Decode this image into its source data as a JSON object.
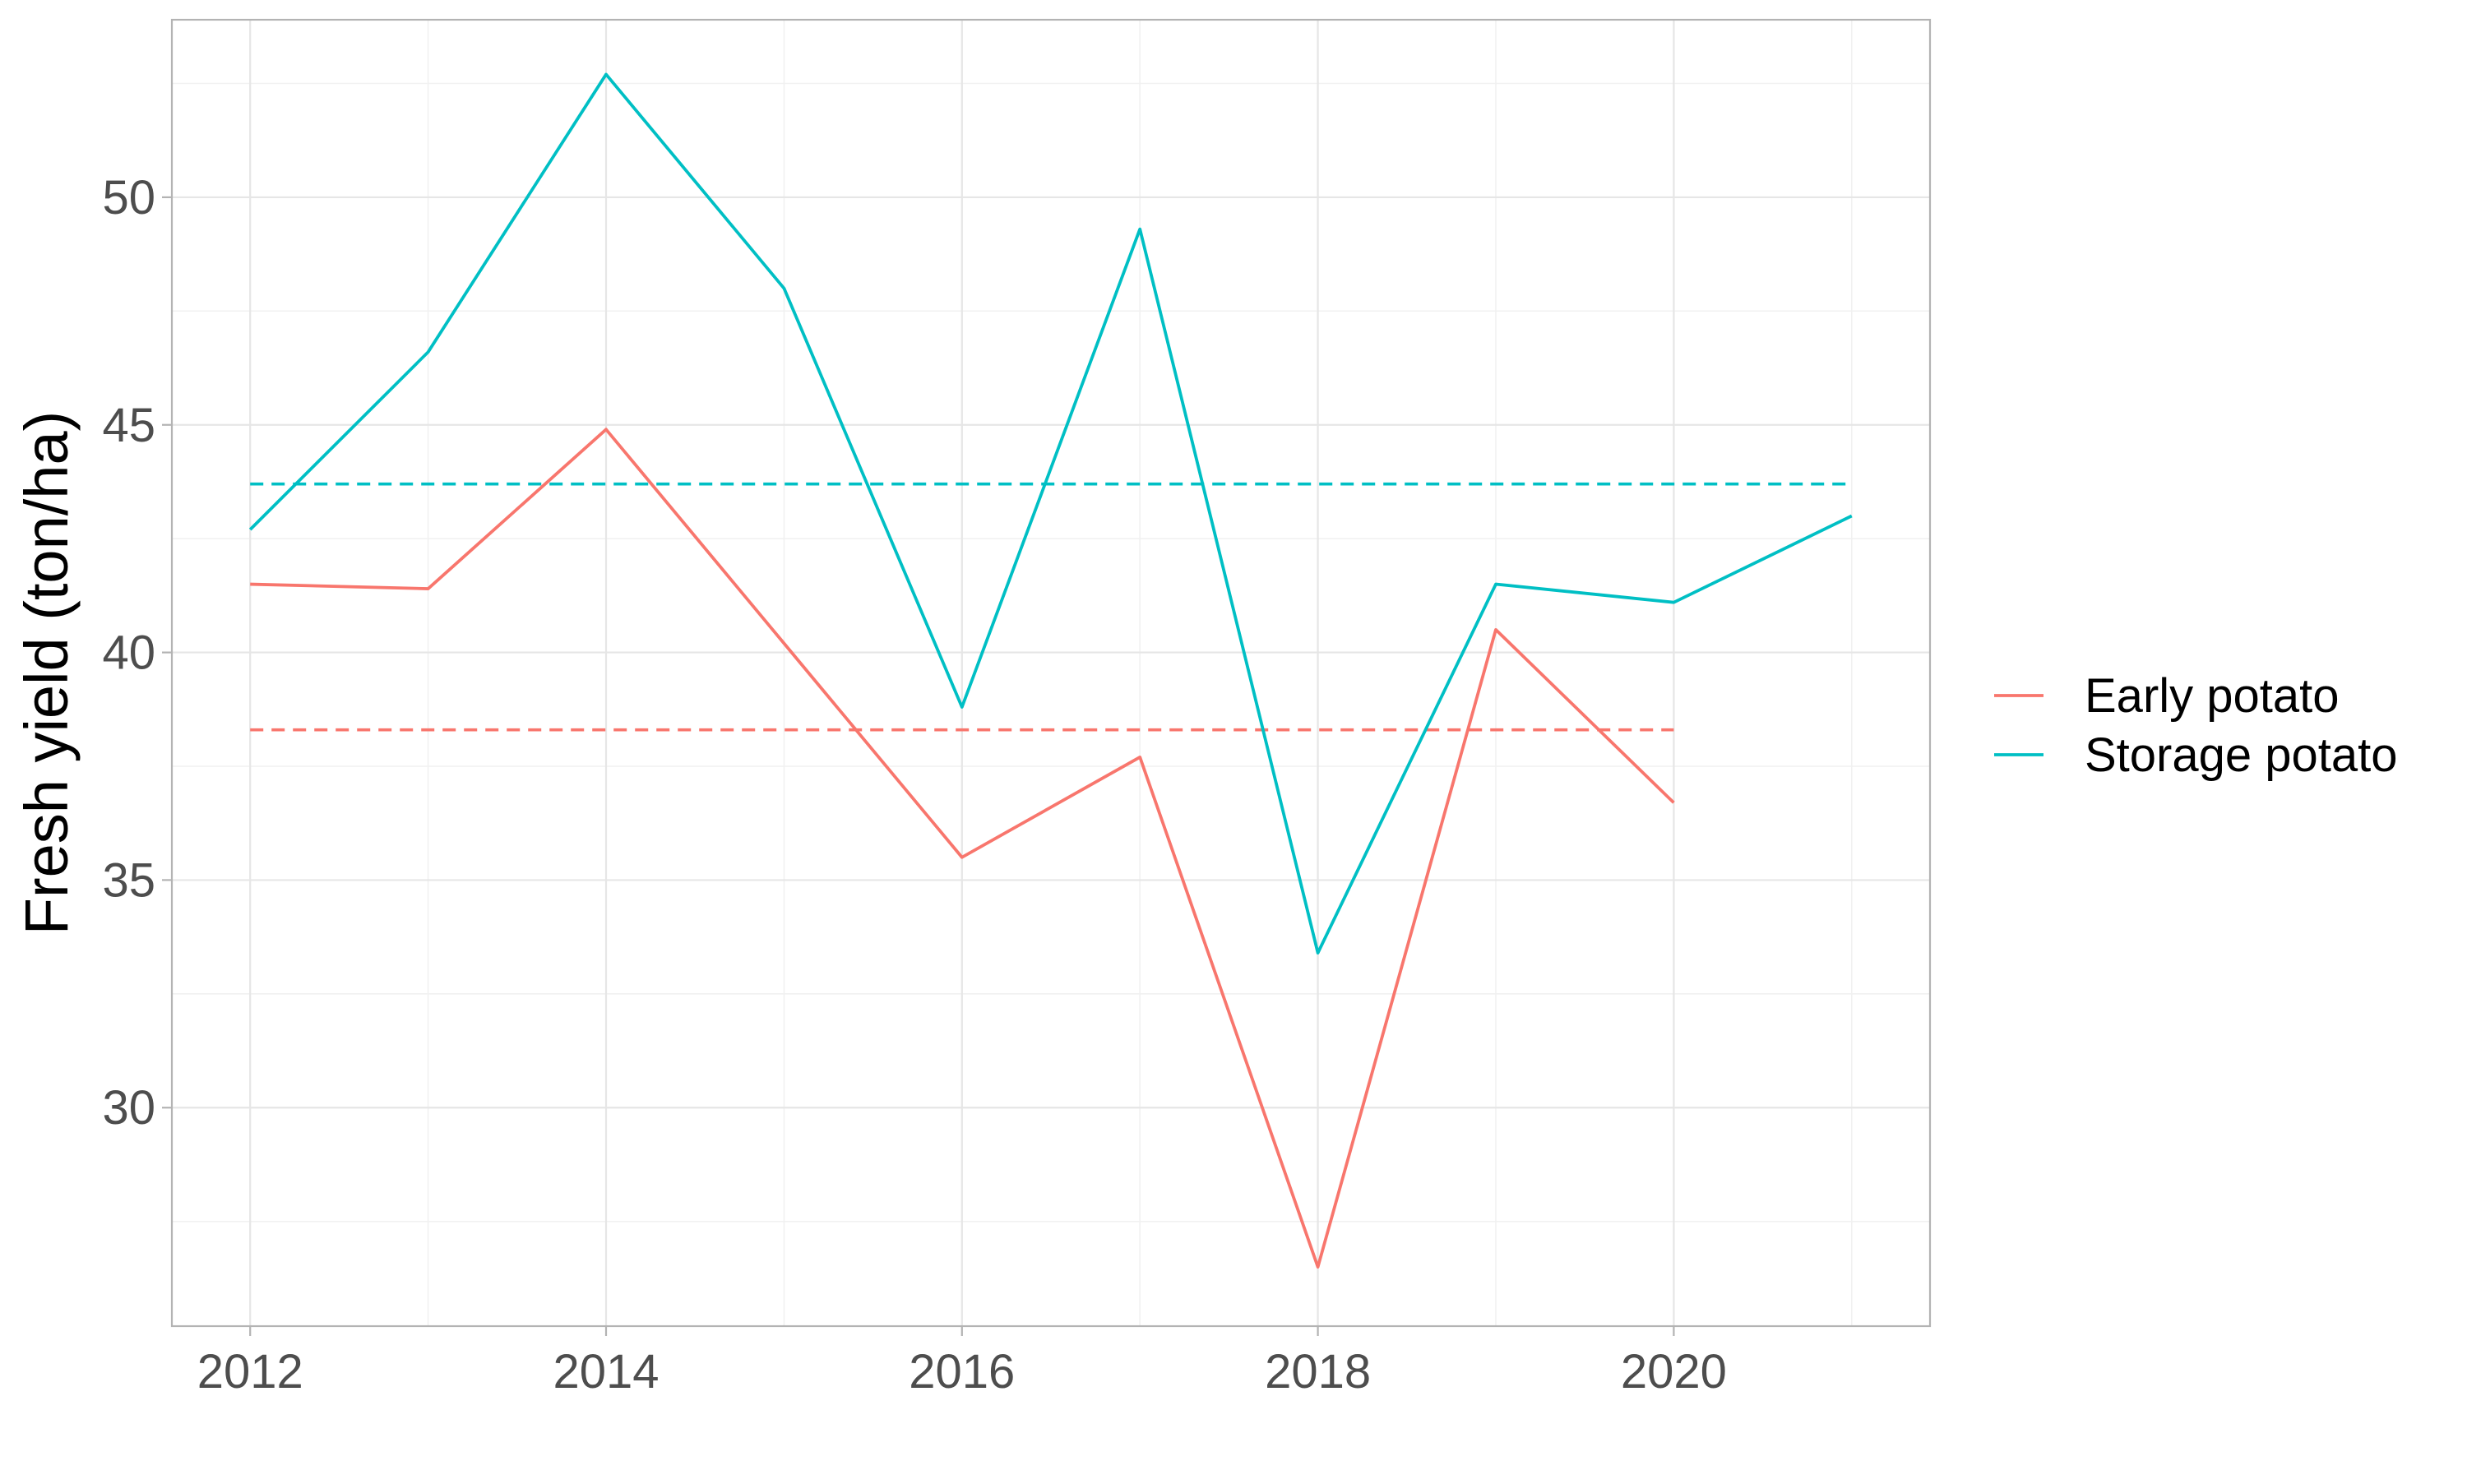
{
  "chart_data": {
    "type": "line",
    "title": "",
    "xlabel": "",
    "ylabel": "Fresh yield (ton/ha)",
    "x": [
      2012,
      2013,
      2014,
      2015,
      2016,
      2017,
      2018,
      2019,
      2020,
      2021
    ],
    "xlim": [
      2011.56,
      2021.44
    ],
    "ylim": [
      25.2,
      53.9
    ],
    "x_ticks": [
      2012,
      2014,
      2016,
      2018,
      2020
    ],
    "x_tick_labels": [
      "2012",
      "2014",
      "2016",
      "2018",
      "2020"
    ],
    "y_ticks": [
      30,
      35,
      40,
      45,
      50
    ],
    "y_tick_labels": [
      "30",
      "35",
      "40",
      "45",
      "50"
    ],
    "grid": true,
    "legend_position": "right",
    "series": [
      {
        "name": "Early potato",
        "color": "#F8766D",
        "x": [
          2012,
          2013,
          2014,
          2015,
          2016,
          2017,
          2018,
          2019,
          2020
        ],
        "values": [
          41.5,
          41.4,
          44.9,
          40.2,
          35.5,
          37.7,
          26.5,
          40.5,
          36.7
        ],
        "mean": 38.3,
        "mean_x_range": [
          2012,
          2020
        ]
      },
      {
        "name": "Storage potato",
        "color": "#00BFC4",
        "x": [
          2012,
          2013,
          2014,
          2015,
          2016,
          2017,
          2018,
          2019,
          2020,
          2021
        ],
        "values": [
          42.7,
          46.6,
          52.7,
          48.0,
          38.8,
          49.3,
          33.4,
          41.5,
          41.1,
          43.0
        ],
        "mean": 43.7,
        "mean_x_range": [
          2012,
          2021
        ]
      }
    ]
  }
}
